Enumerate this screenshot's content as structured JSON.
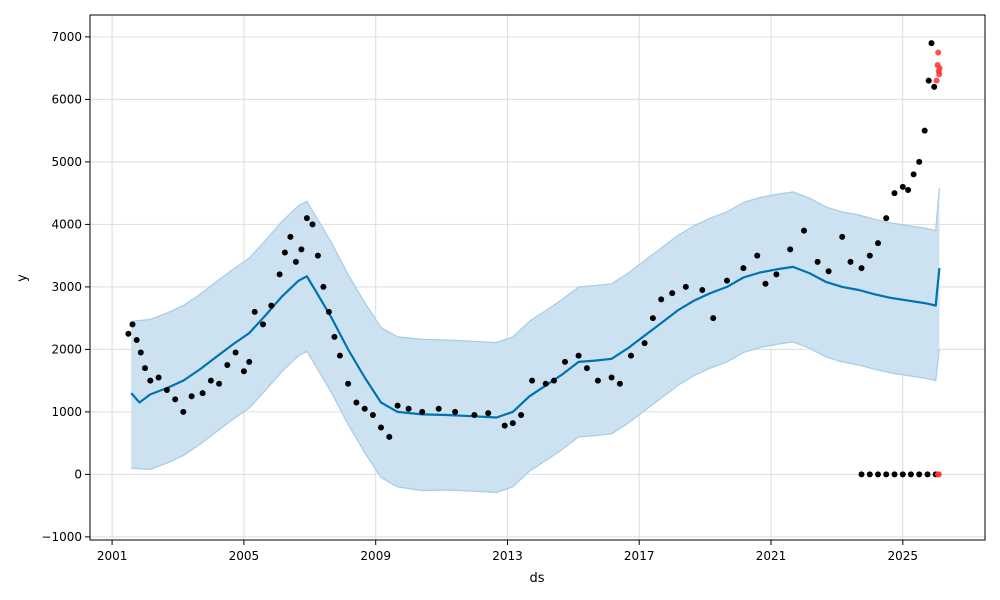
{
  "chart_data": {
    "type": "scatter",
    "title": "",
    "xlabel": "ds",
    "ylabel": "y",
    "x_range": [
      "2000-05-01",
      "2027-07-01"
    ],
    "ylim": [
      -1050,
      7350
    ],
    "x_ticks": [
      "2001-01-01",
      "2005-01-01",
      "2009-01-01",
      "2013-01-01",
      "2017-01-01",
      "2021-01-01",
      "2025-01-01"
    ],
    "x_tick_labels": [
      "2001",
      "2005",
      "2009",
      "2013",
      "2017",
      "2021",
      "2025"
    ],
    "y_ticks": [
      -1000,
      0,
      1000,
      2000,
      3000,
      4000,
      5000,
      6000,
      7000
    ],
    "grid": true,
    "colors": {
      "observed": "#000000",
      "outlier": "#ff3333",
      "forecast_line": "#0072b2",
      "uncertainty_fill": "#cde2f1",
      "uncertainty_edge": "#a7cce6"
    },
    "forecast": {
      "name": "yhat",
      "points": [
        [
          "2001-08-01",
          1300
        ],
        [
          "2001-11-01",
          1150
        ],
        [
          "2002-03-01",
          1280
        ],
        [
          "2002-09-01",
          1380
        ],
        [
          "2003-03-01",
          1500
        ],
        [
          "2003-09-01",
          1680
        ],
        [
          "2004-03-01",
          1880
        ],
        [
          "2004-09-01",
          2080
        ],
        [
          "2005-03-01",
          2260
        ],
        [
          "2005-09-01",
          2550
        ],
        [
          "2006-03-01",
          2850
        ],
        [
          "2006-09-01",
          3100
        ],
        [
          "2006-12-01",
          3170
        ],
        [
          "2007-03-01",
          2950
        ],
        [
          "2007-09-01",
          2500
        ],
        [
          "2008-03-01",
          2000
        ],
        [
          "2008-09-01",
          1550
        ],
        [
          "2009-03-01",
          1150
        ],
        [
          "2009-09-01",
          1000
        ],
        [
          "2010-06-01",
          960
        ],
        [
          "2011-03-01",
          950
        ],
        [
          "2012-01-01",
          930
        ],
        [
          "2012-09-01",
          910
        ],
        [
          "2013-03-01",
          1000
        ],
        [
          "2013-09-01",
          1250
        ],
        [
          "2014-03-01",
          1420
        ],
        [
          "2014-09-01",
          1600
        ],
        [
          "2015-03-01",
          1800
        ],
        [
          "2015-09-01",
          1820
        ],
        [
          "2016-03-01",
          1850
        ],
        [
          "2016-09-01",
          2020
        ],
        [
          "2017-03-01",
          2220
        ],
        [
          "2017-09-01",
          2420
        ],
        [
          "2018-03-01",
          2620
        ],
        [
          "2018-09-01",
          2780
        ],
        [
          "2019-03-01",
          2900
        ],
        [
          "2019-09-01",
          3000
        ],
        [
          "2020-03-01",
          3150
        ],
        [
          "2020-09-01",
          3230
        ],
        [
          "2021-03-01",
          3280
        ],
        [
          "2021-09-01",
          3320
        ],
        [
          "2022-03-01",
          3220
        ],
        [
          "2022-09-01",
          3080
        ],
        [
          "2023-03-01",
          3000
        ],
        [
          "2023-09-01",
          2950
        ],
        [
          "2024-03-01",
          2880
        ],
        [
          "2024-09-01",
          2820
        ],
        [
          "2025-03-01",
          2780
        ],
        [
          "2025-09-01",
          2740
        ],
        [
          "2026-01-01",
          2700
        ],
        [
          "2026-01-20",
          3000
        ],
        [
          "2026-02-10",
          3300
        ]
      ],
      "upper": [
        [
          "2001-08-01",
          2450
        ],
        [
          "2002-03-01",
          2480
        ],
        [
          "2002-09-01",
          2580
        ],
        [
          "2003-03-01",
          2700
        ],
        [
          "2003-09-01",
          2880
        ],
        [
          "2004-03-01",
          3080
        ],
        [
          "2004-09-01",
          3280
        ],
        [
          "2005-03-01",
          3460
        ],
        [
          "2005-09-01",
          3750
        ],
        [
          "2006-03-01",
          4050
        ],
        [
          "2006-09-01",
          4300
        ],
        [
          "2006-12-01",
          4370
        ],
        [
          "2007-03-01",
          4150
        ],
        [
          "2007-09-01",
          3700
        ],
        [
          "2008-03-01",
          3200
        ],
        [
          "2008-09-01",
          2750
        ],
        [
          "2009-03-01",
          2350
        ],
        [
          "2009-09-01",
          2200
        ],
        [
          "2010-06-01",
          2160
        ],
        [
          "2011-03-01",
          2150
        ],
        [
          "2012-01-01",
          2130
        ],
        [
          "2012-09-01",
          2110
        ],
        [
          "2013-03-01",
          2200
        ],
        [
          "2013-09-01",
          2450
        ],
        [
          "2014-03-01",
          2620
        ],
        [
          "2014-09-01",
          2800
        ],
        [
          "2015-03-01",
          3000
        ],
        [
          "2015-09-01",
          3020
        ],
        [
          "2016-03-01",
          3050
        ],
        [
          "2016-09-01",
          3220
        ],
        [
          "2017-03-01",
          3420
        ],
        [
          "2017-09-01",
          3620
        ],
        [
          "2018-03-01",
          3820
        ],
        [
          "2018-09-01",
          3980
        ],
        [
          "2019-03-01",
          4100
        ],
        [
          "2019-09-01",
          4200
        ],
        [
          "2020-03-01",
          4350
        ],
        [
          "2020-09-01",
          4430
        ],
        [
          "2021-03-01",
          4480
        ],
        [
          "2021-09-01",
          4520
        ],
        [
          "2022-03-01",
          4420
        ],
        [
          "2022-09-01",
          4280
        ],
        [
          "2023-03-01",
          4200
        ],
        [
          "2023-09-01",
          4150
        ],
        [
          "2024-03-01",
          4080
        ],
        [
          "2024-09-01",
          4020
        ],
        [
          "2025-03-01",
          3980
        ],
        [
          "2025-09-01",
          3940
        ],
        [
          "2026-01-01",
          3900
        ],
        [
          "2026-01-20",
          4250
        ],
        [
          "2026-02-10",
          4580
        ]
      ],
      "lower": [
        [
          "2001-08-01",
          100
        ],
        [
          "2002-03-01",
          80
        ],
        [
          "2002-09-01",
          180
        ],
        [
          "2003-03-01",
          300
        ],
        [
          "2003-09-01",
          480
        ],
        [
          "2004-03-01",
          680
        ],
        [
          "2004-09-01",
          880
        ],
        [
          "2005-03-01",
          1060
        ],
        [
          "2005-09-01",
          1350
        ],
        [
          "2006-03-01",
          1650
        ],
        [
          "2006-09-01",
          1900
        ],
        [
          "2006-12-01",
          1970
        ],
        [
          "2007-03-01",
          1750
        ],
        [
          "2007-09-01",
          1300
        ],
        [
          "2008-03-01",
          800
        ],
        [
          "2008-09-01",
          350
        ],
        [
          "2009-03-01",
          -50
        ],
        [
          "2009-09-01",
          -200
        ],
        [
          "2010-06-01",
          -260
        ],
        [
          "2011-03-01",
          -250
        ],
        [
          "2012-01-01",
          -270
        ],
        [
          "2012-09-01",
          -290
        ],
        [
          "2013-03-01",
          -200
        ],
        [
          "2013-09-01",
          50
        ],
        [
          "2014-03-01",
          220
        ],
        [
          "2014-09-01",
          400
        ],
        [
          "2015-03-01",
          600
        ],
        [
          "2015-09-01",
          620
        ],
        [
          "2016-03-01",
          650
        ],
        [
          "2016-09-01",
          820
        ],
        [
          "2017-03-01",
          1020
        ],
        [
          "2017-09-01",
          1220
        ],
        [
          "2018-03-01",
          1420
        ],
        [
          "2018-09-01",
          1580
        ],
        [
          "2019-03-01",
          1700
        ],
        [
          "2019-09-01",
          1800
        ],
        [
          "2020-03-01",
          1950
        ],
        [
          "2020-09-01",
          2030
        ],
        [
          "2021-03-01",
          2080
        ],
        [
          "2021-09-01",
          2120
        ],
        [
          "2022-03-01",
          2020
        ],
        [
          "2022-09-01",
          1880
        ],
        [
          "2023-03-01",
          1800
        ],
        [
          "2023-09-01",
          1750
        ],
        [
          "2024-03-01",
          1680
        ],
        [
          "2024-09-01",
          1620
        ],
        [
          "2025-03-01",
          1580
        ],
        [
          "2025-09-01",
          1540
        ],
        [
          "2026-01-01",
          1500
        ],
        [
          "2026-01-20",
          1750
        ],
        [
          "2026-02-10",
          2000
        ]
      ]
    },
    "observed": [
      [
        "2001-07-01",
        2250
      ],
      [
        "2001-08-15",
        2400
      ],
      [
        "2001-10-01",
        2150
      ],
      [
        "2001-11-15",
        1950
      ],
      [
        "2002-01-01",
        1700
      ],
      [
        "2002-03-01",
        1500
      ],
      [
        "2002-06-01",
        1550
      ],
      [
        "2002-09-01",
        1350
      ],
      [
        "2002-12-01",
        1200
      ],
      [
        "2003-03-01",
        1000
      ],
      [
        "2003-06-01",
        1250
      ],
      [
        "2003-10-01",
        1300
      ],
      [
        "2004-01-01",
        1500
      ],
      [
        "2004-04-01",
        1450
      ],
      [
        "2004-07-01",
        1750
      ],
      [
        "2004-10-01",
        1950
      ],
      [
        "2005-01-01",
        1650
      ],
      [
        "2005-03-01",
        1800
      ],
      [
        "2005-05-01",
        2600
      ],
      [
        "2005-08-01",
        2400
      ],
      [
        "2005-11-01",
        2700
      ],
      [
        "2006-02-01",
        3200
      ],
      [
        "2006-04-01",
        3550
      ],
      [
        "2006-06-01",
        3800
      ],
      [
        "2006-08-01",
        3400
      ],
      [
        "2006-10-01",
        3600
      ],
      [
        "2006-12-01",
        4100
      ],
      [
        "2007-02-01",
        4000
      ],
      [
        "2007-04-01",
        3500
      ],
      [
        "2007-06-01",
        3000
      ],
      [
        "2007-08-01",
        2600
      ],
      [
        "2007-10-01",
        2200
      ],
      [
        "2007-12-01",
        1900
      ],
      [
        "2008-03-01",
        1450
      ],
      [
        "2008-06-01",
        1150
      ],
      [
        "2008-09-01",
        1050
      ],
      [
        "2008-12-01",
        950
      ],
      [
        "2009-03-01",
        750
      ],
      [
        "2009-06-01",
        600
      ],
      [
        "2009-09-01",
        1100
      ],
      [
        "2010-01-01",
        1050
      ],
      [
        "2010-06-01",
        1000
      ],
      [
        "2010-12-01",
        1050
      ],
      [
        "2011-06-01",
        1000
      ],
      [
        "2012-01-01",
        950
      ],
      [
        "2012-06-01",
        980
      ],
      [
        "2012-12-01",
        780
      ],
      [
        "2013-03-01",
        820
      ],
      [
        "2013-06-01",
        950
      ],
      [
        "2013-10-01",
        1500
      ],
      [
        "2014-03-01",
        1450
      ],
      [
        "2014-06-01",
        1500
      ],
      [
        "2014-10-01",
        1800
      ],
      [
        "2015-03-01",
        1900
      ],
      [
        "2015-06-01",
        1700
      ],
      [
        "2015-10-01",
        1500
      ],
      [
        "2016-03-01",
        1550
      ],
      [
        "2016-06-01",
        1450
      ],
      [
        "2016-10-01",
        1900
      ],
      [
        "2017-03-01",
        2100
      ],
      [
        "2017-06-01",
        2500
      ],
      [
        "2017-09-01",
        2800
      ],
      [
        "2018-01-01",
        2900
      ],
      [
        "2018-06-01",
        3000
      ],
      [
        "2018-12-01",
        2950
      ],
      [
        "2019-04-01",
        2500
      ],
      [
        "2019-09-01",
        3100
      ],
      [
        "2020-03-01",
        3300
      ],
      [
        "2020-08-01",
        3500
      ],
      [
        "2020-11-01",
        3050
      ],
      [
        "2021-03-01",
        3200
      ],
      [
        "2021-08-01",
        3600
      ],
      [
        "2022-01-01",
        3900
      ],
      [
        "2022-06-01",
        3400
      ],
      [
        "2022-10-01",
        3250
      ],
      [
        "2023-03-01",
        3800
      ],
      [
        "2023-06-01",
        3400
      ],
      [
        "2023-10-01",
        3300
      ],
      [
        "2024-01-01",
        3500
      ],
      [
        "2024-04-01",
        3700
      ],
      [
        "2024-07-01",
        4100
      ],
      [
        "2024-10-01",
        4500
      ],
      [
        "2025-01-01",
        4600
      ],
      [
        "2025-03-01",
        4550
      ],
      [
        "2025-05-01",
        4800
      ],
      [
        "2025-07-01",
        5000
      ],
      [
        "2025-09-01",
        5500
      ],
      [
        "2025-10-15",
        6300
      ],
      [
        "2025-11-15",
        6900
      ],
      [
        "2025-12-15",
        6200
      ],
      [
        "2023-10-01",
        0
      ],
      [
        "2024-01-01",
        0
      ],
      [
        "2024-04-01",
        0
      ],
      [
        "2024-07-01",
        0
      ],
      [
        "2024-10-01",
        0
      ],
      [
        "2025-01-01",
        0
      ],
      [
        "2025-04-01",
        0
      ],
      [
        "2025-07-01",
        0
      ],
      [
        "2025-10-01",
        0
      ],
      [
        "2026-01-01",
        0
      ]
    ],
    "outliers": [
      [
        "2026-01-10",
        6300
      ],
      [
        "2026-01-20",
        6550
      ],
      [
        "2026-01-28",
        6750
      ],
      [
        "2026-02-04",
        6450
      ],
      [
        "2026-02-08",
        6400
      ],
      [
        "2026-02-12",
        6500
      ],
      [
        "2026-01-25",
        0
      ],
      [
        "2026-02-05",
        0
      ]
    ]
  }
}
